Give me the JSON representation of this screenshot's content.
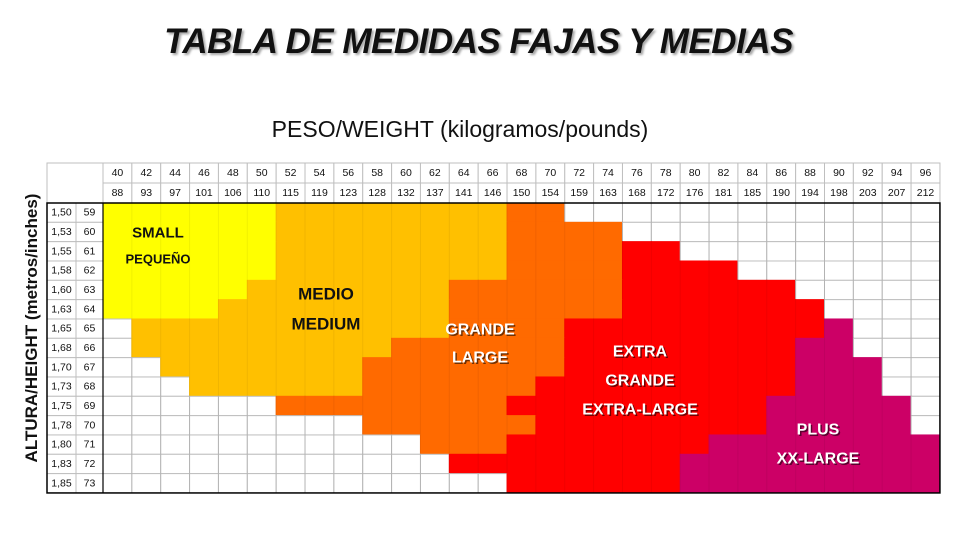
{
  "title": "TABLA DE MEDIDAS FAJAS Y MEDIAS",
  "chart_data": {
    "type": "heatmap",
    "title": "TABLA DE MEDIDAS FAJAS Y MEDIAS",
    "xlabel": "PESO/WEIGHT (kilogramos/pounds)",
    "ylabel": "ALTURA/HEIGHT (metros/inches)",
    "weight_kg": [
      "40",
      "42",
      "44",
      "46",
      "48",
      "50",
      "52",
      "54",
      "56",
      "58",
      "60",
      "62",
      "64",
      "66",
      "68",
      "70",
      "72",
      "74",
      "76",
      "78",
      "80",
      "82",
      "84",
      "86",
      "88",
      "90",
      "92",
      "94",
      "96"
    ],
    "weight_lb": [
      "88",
      "93",
      "97",
      "101",
      "106",
      "110",
      "115",
      "119",
      "123",
      "128",
      "132",
      "137",
      "141",
      "146",
      "150",
      "154",
      "159",
      "163",
      "168",
      "172",
      "176",
      "181",
      "185",
      "190",
      "194",
      "198",
      "203",
      "207",
      "212"
    ],
    "height_m": [
      "1,50",
      "1,53",
      "1,55",
      "1,58",
      "1,60",
      "1,63",
      "1,65",
      "1,68",
      "1,70",
      "1,73",
      "1,75",
      "1,78",
      "1,80",
      "1,83",
      "1,85"
    ],
    "height_in": [
      "59",
      "60",
      "61",
      "62",
      "63",
      "64",
      "65",
      "66",
      "67",
      "68",
      "69",
      "70",
      "71",
      "72",
      "73"
    ],
    "size_labels": [
      {
        "key": "S",
        "lines": [
          "SMALL",
          "PEQUEÑO"
        ]
      },
      {
        "key": "M",
        "lines": [
          "MEDIO",
          "MEDIUM"
        ]
      },
      {
        "key": "L",
        "lines": [
          "GRANDE",
          "LARGE"
        ]
      },
      {
        "key": "XL",
        "lines": [
          "EXTRA",
          "GRANDE",
          "EXTRA-LARGE"
        ]
      },
      {
        "key": "XXL",
        "lines": [
          "PLUS",
          "XX-LARGE"
        ]
      }
    ],
    "colors": {
      "S": "#ffff00",
      "M": "#ffc000",
      "L": "#ff6a00",
      "XL": "#ff0000",
      "XXL": "#cc0066",
      "none": "#ffffff"
    },
    "grid": [
      "SSSSSSMMMMMMMMLL.............",
      "SSSSSSMMMMMMMMLLLL...........",
      "SSSSSSMMMMMMMMLLLLXX.........",
      "SSSSSSMMMMMMMMLLLLXXXX.......",
      "SSSSSMMMMMMMLLLLLLXXXXXX.....",
      "SSSSMMMMMMMMLLLLLLXXXXXXX....",
      ".MMMMMMMMMMMLLLLXXXXXXXXXV...",
      ".MMMMMMMMMLLLLLLXXXXXXXXVV...",
      "..MMMMMMMLLLLLLLXXXXXXXXVVV..",
      "...MMMMMMLLLLLLXXXXXXXXXVVV..",
      "......LLLLLLLLXXXXXXXXXVVVVV.",
      ".........LLLLLLXXXXXXXXVVVVV.",
      "...........LLLXXXXXXXVVVVVVVV",
      "............XXXXXXXXVVVVVVVVV",
      "..............XXXXXXVVVVVVVVV"
    ]
  }
}
